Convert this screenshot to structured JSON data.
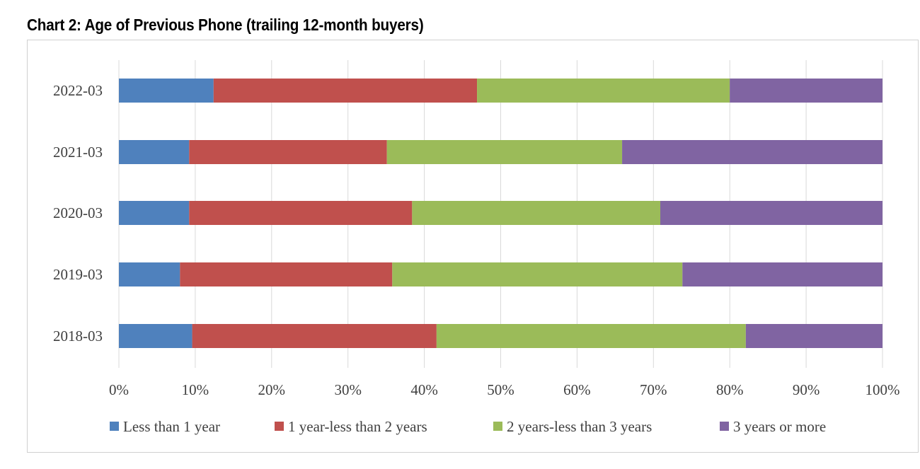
{
  "chart_data": {
    "type": "bar",
    "orientation": "horizontal",
    "stacked": true,
    "title": "Chart 2: Age of Previous Phone (trailing 12-month buyers)",
    "categories": [
      "2022-03",
      "2021-03",
      "2020-03",
      "2019-03",
      "2018-03"
    ],
    "series": [
      {
        "name": "Less than 1 year",
        "color": "#4f81bd",
        "values": [
          12.4,
          9.2,
          9.2,
          8.0,
          9.6
        ]
      },
      {
        "name": "1 year-less than 2 years",
        "color": "#c0504d",
        "values": [
          34.5,
          25.9,
          29.2,
          27.8,
          32.0
        ]
      },
      {
        "name": "2 years-less than 3 years",
        "color": "#9bbb59",
        "values": [
          33.1,
          30.8,
          32.5,
          38.0,
          40.5
        ]
      },
      {
        "name": "3 years or more",
        "color": "#8064a2",
        "values": [
          20.0,
          34.1,
          29.1,
          26.2,
          17.9
        ]
      }
    ],
    "xlim": [
      0,
      100
    ],
    "xticks": [
      "0%",
      "10%",
      "20%",
      "30%",
      "40%",
      "50%",
      "60%",
      "70%",
      "80%",
      "90%",
      "100%"
    ],
    "grid": true,
    "legend": "bottom"
  }
}
